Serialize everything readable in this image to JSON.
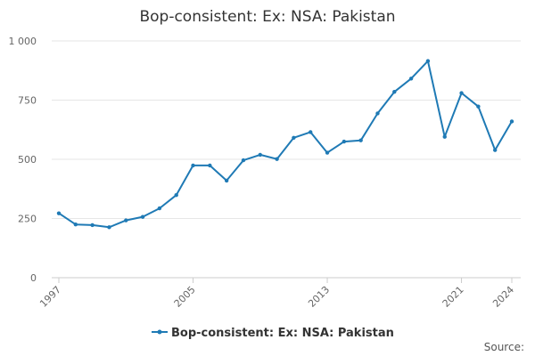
{
  "chart_data": {
    "type": "line",
    "title": "Bop-consistent: Ex: NSA: Pakistan",
    "xlabel": "",
    "ylabel": "",
    "x": [
      1997,
      1998,
      1999,
      2000,
      2001,
      2002,
      2003,
      2004,
      2005,
      2006,
      2007,
      2008,
      2009,
      2010,
      2011,
      2012,
      2013,
      2014,
      2015,
      2016,
      2017,
      2018,
      2019,
      2020,
      2021,
      2022,
      2023,
      2024
    ],
    "x_ticks": [
      1997,
      2005,
      2013,
      2021,
      2024
    ],
    "x_tick_labels": [
      "1997",
      "2005",
      "2013",
      "2021",
      "2024"
    ],
    "y_ticks": [
      0,
      250,
      500,
      750,
      1000
    ],
    "y_tick_labels": [
      "0",
      "250",
      "500",
      "750",
      "1 000"
    ],
    "ylim": [
      0,
      1000
    ],
    "xlim": [
      1997,
      2024
    ],
    "grid": "horizontal",
    "legend_position": "bottom-center",
    "series": [
      {
        "name": "Bop-consistent: Ex: NSA: Pakistan",
        "color": "#1f7ab5",
        "values": [
          272,
          225,
          222,
          213,
          242,
          257,
          293,
          349,
          474,
          474,
          410,
          496,
          519,
          501,
          591,
          615,
          528,
          575,
          580,
          694,
          785,
          841,
          915,
          595,
          780,
          723,
          539,
          660
        ]
      }
    ]
  },
  "source_label": "Source:"
}
